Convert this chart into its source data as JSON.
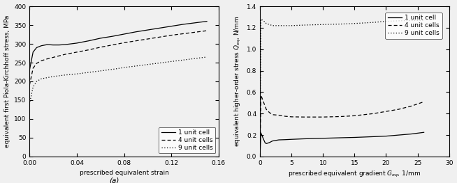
{
  "left": {
    "xlabel": "prescribed equivalent strain",
    "ylabel": "equivalent first Piola-Kirchhoff stress, MPa",
    "xlim": [
      0,
      0.16
    ],
    "ylim": [
      0,
      400
    ],
    "xticks": [
      0,
      0.04,
      0.08,
      0.12,
      0.16
    ],
    "yticks": [
      0,
      50,
      100,
      150,
      200,
      250,
      300,
      350,
      400
    ],
    "legend": [
      "1 unit cell",
      "4 unit cells",
      "9 unit cells"
    ],
    "caption": "(a)",
    "curves": {
      "solid": {
        "x": [
          0,
          0.003,
          0.006,
          0.01,
          0.015,
          0.02,
          0.025,
          0.03,
          0.04,
          0.05,
          0.06,
          0.07,
          0.08,
          0.09,
          0.1,
          0.11,
          0.12,
          0.13,
          0.14,
          0.15
        ],
        "y": [
          230,
          278,
          290,
          295,
          298,
          297,
          297,
          298,
          302,
          308,
          315,
          320,
          326,
          332,
          337,
          342,
          347,
          352,
          356,
          360
        ]
      },
      "dashed": {
        "x": [
          0,
          0.003,
          0.006,
          0.01,
          0.015,
          0.02,
          0.025,
          0.03,
          0.04,
          0.05,
          0.06,
          0.07,
          0.08,
          0.09,
          0.1,
          0.11,
          0.12,
          0.13,
          0.14,
          0.15
        ],
        "y": [
          190,
          235,
          248,
          255,
          260,
          264,
          268,
          272,
          278,
          284,
          291,
          297,
          303,
          308,
          313,
          318,
          323,
          327,
          331,
          335
        ]
      },
      "dotted": {
        "x": [
          0,
          0.003,
          0.006,
          0.01,
          0.015,
          0.02,
          0.025,
          0.03,
          0.04,
          0.05,
          0.06,
          0.07,
          0.08,
          0.09,
          0.1,
          0.11,
          0.12,
          0.13,
          0.14,
          0.15
        ],
        "y": [
          140,
          185,
          200,
          207,
          210,
          213,
          215,
          217,
          220,
          224,
          228,
          232,
          237,
          241,
          245,
          249,
          253,
          257,
          261,
          265
        ]
      }
    }
  },
  "right": {
    "xlabel": "prescribed equivalent gradient $G_{eq}$, 1/mm",
    "ylabel": "equivalent higher-order stress $Q_{eq}$, N/mm",
    "xlim": [
      0,
      30
    ],
    "ylim": [
      0,
      1.4
    ],
    "xticks": [
      0,
      5,
      10,
      15,
      20,
      25,
      30
    ],
    "yticks": [
      0,
      0.2,
      0.4,
      0.6,
      0.8,
      1.0,
      1.2,
      1.4
    ],
    "legend": [
      "1 unit cell",
      "4 unit cells",
      "9 unit cells"
    ],
    "curves": {
      "solid": {
        "x": [
          0,
          0.15,
          0.3,
          0.5,
          0.8,
          1.0,
          1.5,
          2.0,
          3.0,
          4.0,
          5.0,
          7.0,
          10.0,
          13.0,
          15.0,
          18.0,
          20.0,
          22.0,
          24.0,
          26.0
        ],
        "y": [
          0.0,
          0.22,
          0.2,
          0.17,
          0.13,
          0.12,
          0.13,
          0.145,
          0.155,
          0.157,
          0.16,
          0.165,
          0.17,
          0.175,
          0.178,
          0.185,
          0.19,
          0.2,
          0.21,
          0.225
        ]
      },
      "dashed": {
        "x": [
          0,
          0.15,
          0.3,
          0.5,
          0.8,
          1.0,
          1.5,
          2.0,
          3.0,
          4.0,
          5.0,
          7.0,
          10.0,
          13.0,
          15.0,
          18.0,
          20.0,
          22.0,
          24.0,
          26.0
        ],
        "y": [
          0.0,
          0.57,
          0.55,
          0.52,
          0.47,
          0.44,
          0.41,
          0.39,
          0.385,
          0.375,
          0.37,
          0.368,
          0.368,
          0.373,
          0.38,
          0.4,
          0.42,
          0.44,
          0.47,
          0.51
        ]
      },
      "dotted": {
        "x": [
          0,
          0.15,
          0.3,
          0.5,
          0.8,
          1.0,
          1.5,
          2.0,
          3.0,
          4.0,
          5.0,
          7.0,
          10.0,
          13.0,
          15.0,
          18.0,
          20.0,
          22.0,
          24.0,
          26.0
        ],
        "y": [
          0.0,
          1.28,
          1.275,
          1.265,
          1.255,
          1.24,
          1.23,
          1.22,
          1.22,
          1.22,
          1.22,
          1.225,
          1.23,
          1.235,
          1.24,
          1.25,
          1.26,
          1.265,
          1.268,
          1.27
        ]
      }
    }
  },
  "line_color": "#000000",
  "background_color": "#f0f0f0",
  "font_size": 6.5
}
